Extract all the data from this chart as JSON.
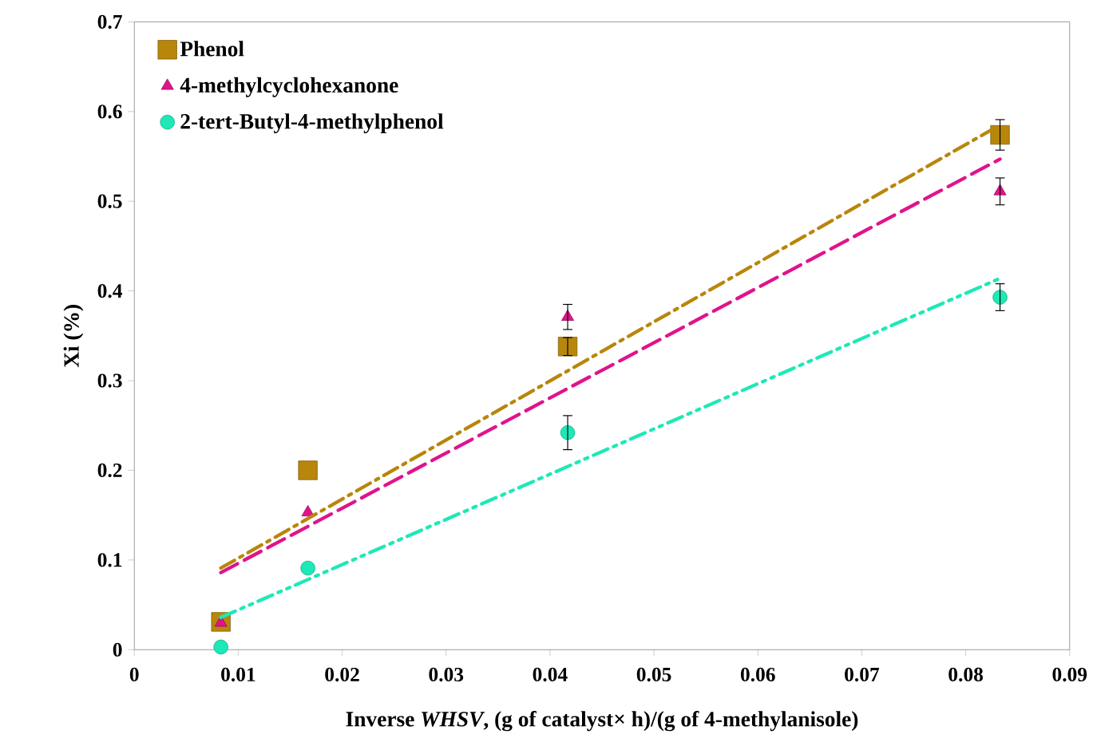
{
  "chart_data": {
    "type": "scatter",
    "xlabel": "Inverse *WHSV*, (g of catalyst× h)/(g of 4-methylanisole)",
    "ylabel": "Xi (%)",
    "xlim": [
      0,
      0.09
    ],
    "xticks": [
      0,
      0.01,
      0.02,
      0.03,
      0.04,
      0.05,
      0.06,
      0.07,
      0.08,
      0.09
    ],
    "ylim": [
      0,
      0.7
    ],
    "yticks": [
      0,
      0.1,
      0.2,
      0.3,
      0.4,
      0.5,
      0.6,
      0.7
    ],
    "grid": false,
    "legend": "top left",
    "series": [
      {
        "name": "Phenol",
        "color": "#b8860b",
        "marker": "square",
        "x": [
          0.00833,
          0.0167,
          0.0417,
          0.0833
        ],
        "values": [
          0.031,
          0.2,
          0.338,
          0.574
        ],
        "errors": [
          null,
          null,
          0.01,
          0.017
        ]
      },
      {
        "name": "4-methylcyclohexanone",
        "color": "#e0138c",
        "marker": "triangle",
        "x": [
          0.00833,
          0.0167,
          0.0417,
          0.0833
        ],
        "values": [
          0.03,
          0.153,
          0.371,
          0.511
        ],
        "errors": [
          null,
          null,
          0.014,
          0.015
        ]
      },
      {
        "name": "2-tert-Butyl-4-methylphenol",
        "color": "#1de9b6",
        "marker": "circle",
        "x": [
          0.00833,
          0.0167,
          0.0417,
          0.0833
        ],
        "values": [
          0.003,
          0.091,
          0.242,
          0.393
        ],
        "errors": [
          null,
          null,
          0.019,
          0.015
        ]
      },
      {
        "type": "line",
        "color": "#b8860b",
        "line_style": "dashdot",
        "x": [
          0.00833,
          0.0833
        ],
        "values": [
          0.091,
          0.585
        ]
      },
      {
        "type": "line",
        "color": "#e0138c",
        "line_style": "dashed",
        "x": [
          0.00833,
          0.0833
        ],
        "values": [
          0.086,
          0.547
        ]
      },
      {
        "type": "line",
        "color": "#1de9b6",
        "line_style": "dashdotdot",
        "x": [
          0.00833,
          0.0833
        ],
        "values": [
          0.036,
          0.414
        ]
      }
    ]
  }
}
